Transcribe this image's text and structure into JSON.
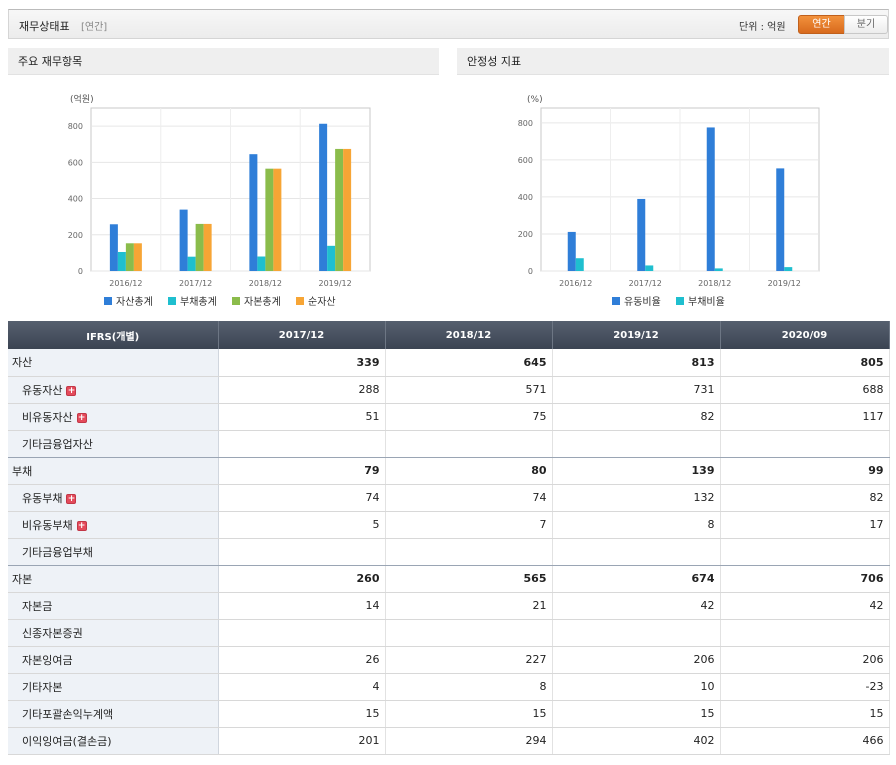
{
  "header": {
    "title": "재무상태표",
    "sub": "[연간]",
    "unit": "단위 : 억원",
    "tab_annual": "연간",
    "tab_quarter": "분기"
  },
  "left_panel": {
    "title": "주요 재무항목"
  },
  "right_panel": {
    "title": "안정성 지표"
  },
  "colors": {
    "blue": "#2f7ed8",
    "cyan": "#1fbfcf",
    "green": "#8bbc4b",
    "orange": "#f7a535"
  },
  "chart_data": [
    {
      "type": "bar",
      "unit_label": "(억원)",
      "categories": [
        "2016/12",
        "2017/12",
        "2018/12",
        "2019/12"
      ],
      "series": [
        {
          "name": "자산총계",
          "color": "#2f7ed8",
          "values": [
            258,
            339,
            645,
            813
          ]
        },
        {
          "name": "부채총계",
          "color": "#1fbfcf",
          "values": [
            105,
            79,
            80,
            139
          ]
        },
        {
          "name": "자본총계",
          "color": "#8bbc4b",
          "values": [
            153,
            260,
            565,
            674
          ]
        },
        {
          "name": "순자산",
          "color": "#f7a535",
          "values": [
            153,
            260,
            565,
            674
          ]
        }
      ],
      "ylim": [
        0,
        900
      ],
      "yticks": [
        0,
        200,
        400,
        600,
        800
      ],
      "grid": true,
      "legend": "bottom"
    },
    {
      "type": "bar",
      "unit_label": "(%)",
      "categories": [
        "2016/12",
        "2017/12",
        "2018/12",
        "2019/12"
      ],
      "series": [
        {
          "name": "유동비율",
          "color": "#2f7ed8",
          "values": [
            211,
            389,
            775,
            554
          ]
        },
        {
          "name": "부채비율",
          "color": "#1fbfcf",
          "values": [
            69,
            30,
            14,
            21
          ]
        }
      ],
      "ylim": [
        0,
        880
      ],
      "yticks": [
        0,
        200,
        400,
        600,
        800
      ],
      "grid": true,
      "legend": "bottom"
    }
  ],
  "table": {
    "header": [
      "IFRS(개별)",
      "2017/12",
      "2018/12",
      "2019/12",
      "2020/09"
    ],
    "rows": [
      {
        "label": "자산",
        "level": "main",
        "expand": false,
        "values": [
          "339",
          "645",
          "813",
          "805"
        ]
      },
      {
        "label": "유동자산",
        "level": "sub",
        "expand": true,
        "values": [
          "288",
          "571",
          "731",
          "688"
        ]
      },
      {
        "label": "비유동자산",
        "level": "sub",
        "expand": true,
        "values": [
          "51",
          "75",
          "82",
          "117"
        ]
      },
      {
        "label": "기타금융업자산",
        "level": "sub",
        "expand": false,
        "values": [
          "",
          "",
          "",
          ""
        ]
      },
      {
        "label": "부채",
        "level": "main",
        "expand": false,
        "values": [
          "79",
          "80",
          "139",
          "99"
        ]
      },
      {
        "label": "유동부채",
        "level": "sub",
        "expand": true,
        "values": [
          "74",
          "74",
          "132",
          "82"
        ]
      },
      {
        "label": "비유동부채",
        "level": "sub",
        "expand": true,
        "values": [
          "5",
          "7",
          "8",
          "17"
        ]
      },
      {
        "label": "기타금융업부채",
        "level": "sub",
        "expand": false,
        "values": [
          "",
          "",
          "",
          ""
        ]
      },
      {
        "label": "자본",
        "level": "main",
        "expand": false,
        "values": [
          "260",
          "565",
          "674",
          "706"
        ]
      },
      {
        "label": "자본금",
        "level": "sub",
        "expand": false,
        "values": [
          "14",
          "21",
          "42",
          "42"
        ]
      },
      {
        "label": "신종자본증권",
        "level": "sub",
        "expand": false,
        "values": [
          "",
          "",
          "",
          ""
        ]
      },
      {
        "label": "자본잉여금",
        "level": "sub",
        "expand": false,
        "values": [
          "26",
          "227",
          "206",
          "206"
        ]
      },
      {
        "label": "기타자본",
        "level": "sub",
        "expand": false,
        "values": [
          "4",
          "8",
          "10",
          "-23"
        ]
      },
      {
        "label": "기타포괄손익누계액",
        "level": "sub",
        "expand": false,
        "values": [
          "15",
          "15",
          "15",
          "15"
        ]
      },
      {
        "label": "이익잉여금(결손금)",
        "level": "sub",
        "expand": false,
        "values": [
          "201",
          "294",
          "402",
          "466"
        ]
      }
    ]
  }
}
